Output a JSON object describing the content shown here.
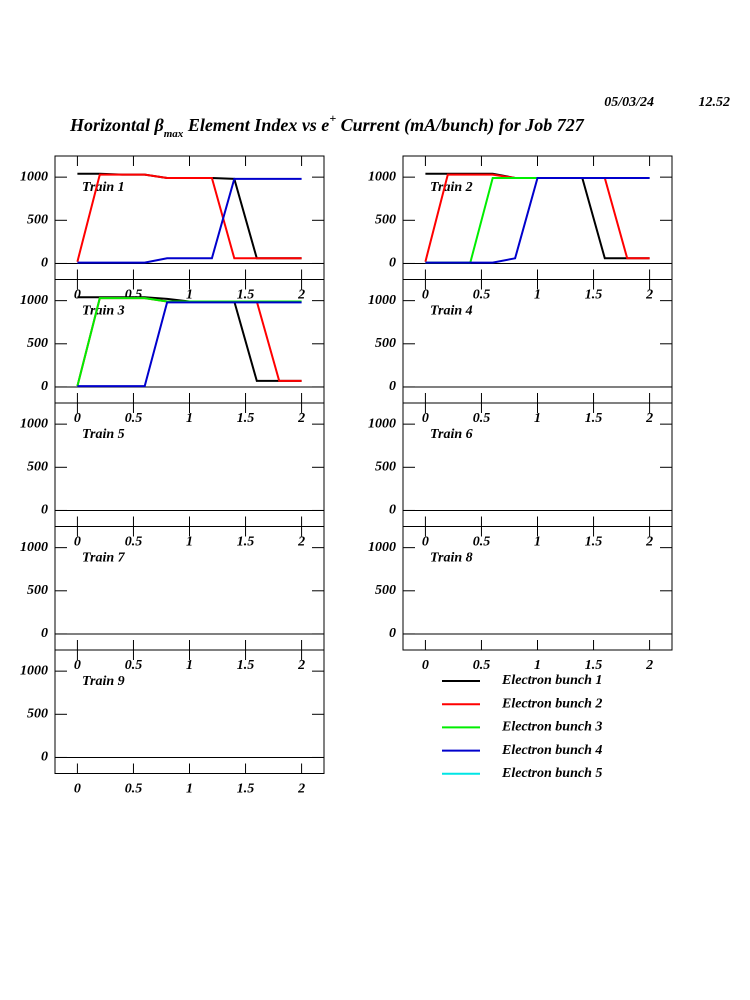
{
  "title_parts": [
    "Horizontal β",
    "max",
    " Element Index vs e",
    "+",
    " Current (mA/bunch) for Job 727"
  ],
  "date": "05/03/24",
  "time": "12.52",
  "legend": [
    {
      "name": "Electron bunch 1",
      "color": "#000000"
    },
    {
      "name": "Electron bunch 2",
      "color": "#ff0000"
    },
    {
      "name": "Electron bunch 3",
      "color": "#00ee00"
    },
    {
      "name": "Electron bunch 4",
      "color": "#0000cc"
    },
    {
      "name": "Electron bunch 5",
      "color": "#00e5e5"
    }
  ],
  "chart_data": [
    {
      "type": "line",
      "title": "Train 1",
      "x": [
        0,
        0.2,
        0.4,
        0.6,
        0.8,
        1,
        1.2,
        1.4,
        1.6,
        1.8,
        2
      ],
      "series": [
        {
          "color": "#000000",
          "values": [
            1040,
            1040,
            1030,
            1030,
            990,
            990,
            990,
            980,
            60,
            60,
            60
          ]
        },
        {
          "color": "#ff0000",
          "values": [
            20,
            1030,
            1030,
            1030,
            990,
            990,
            990,
            60,
            60,
            60,
            60
          ]
        },
        {
          "color": "#0000cc",
          "values": [
            10,
            10,
            10,
            10,
            60,
            60,
            60,
            980,
            980,
            980,
            980
          ]
        }
      ],
      "xlim": [
        -0.2,
        2.2
      ],
      "ylim": [
        -186,
        1245
      ],
      "xticks": [
        0,
        0.5,
        1,
        1.5,
        2
      ],
      "yticks": [
        0,
        500,
        1000
      ]
    },
    {
      "type": "line",
      "title": "Train 2",
      "x": [
        0,
        0.2,
        0.4,
        0.6,
        0.8,
        1,
        1.2,
        1.4,
        1.6,
        1.8,
        2
      ],
      "series": [
        {
          "color": "#000000",
          "values": [
            1040,
            1040,
            1040,
            1040,
            990,
            990,
            990,
            990,
            60,
            60,
            60
          ]
        },
        {
          "color": "#ff0000",
          "values": [
            20,
            1030,
            1030,
            1030,
            990,
            990,
            990,
            990,
            990,
            60,
            60
          ]
        },
        {
          "color": "#00ee00",
          "values": [
            10,
            10,
            10,
            990,
            990,
            990,
            990,
            990,
            990,
            990,
            990
          ]
        },
        {
          "color": "#0000cc",
          "values": [
            10,
            10,
            10,
            10,
            60,
            990,
            990,
            990,
            990,
            990,
            990
          ]
        }
      ],
      "xlim": [
        -0.2,
        2.2
      ],
      "ylim": [
        -186,
        1245
      ],
      "xticks": [
        0,
        0.5,
        1,
        1.5,
        2
      ],
      "yticks": [
        0,
        500,
        1000
      ]
    },
    {
      "type": "line",
      "title": "Train 3",
      "x": [
        0,
        0.2,
        0.4,
        0.6,
        0.8,
        1,
        1.2,
        1.4,
        1.6,
        1.8,
        2
      ],
      "series": [
        {
          "color": "#000000",
          "values": [
            1040,
            1040,
            1040,
            1040,
            1020,
            990,
            990,
            990,
            70,
            70,
            70
          ]
        },
        {
          "color": "#ff0000",
          "values": [
            10,
            1030,
            1030,
            1030,
            990,
            990,
            990,
            990,
            990,
            70,
            70
          ]
        },
        {
          "color": "#00ee00",
          "values": [
            10,
            1030,
            1030,
            1030,
            990,
            990,
            990,
            990,
            990,
            990,
            990
          ]
        },
        {
          "color": "#0000cc",
          "values": [
            10,
            10,
            10,
            10,
            980,
            980,
            980,
            980,
            980,
            980,
            980
          ]
        }
      ],
      "xlim": [
        -0.2,
        2.2
      ],
      "ylim": [
        -186,
        1245
      ],
      "xticks": [
        0,
        0.5,
        1,
        1.5,
        2
      ],
      "yticks": [
        0,
        500,
        1000
      ]
    },
    {
      "type": "line",
      "title": "Train 4",
      "series": [],
      "xlim": [
        -0.2,
        2.2
      ],
      "ylim": [
        -186,
        1245
      ],
      "xticks": [
        0,
        0.5,
        1,
        1.5,
        2
      ],
      "yticks": [
        0,
        500,
        1000
      ]
    },
    {
      "type": "line",
      "title": "Train 5",
      "series": [],
      "xlim": [
        -0.2,
        2.2
      ],
      "ylim": [
        -186,
        1245
      ],
      "xticks": [
        0,
        0.5,
        1,
        1.5,
        2
      ],
      "yticks": [
        0,
        500,
        1000
      ]
    },
    {
      "type": "line",
      "title": "Train 6",
      "series": [],
      "xlim": [
        -0.2,
        2.2
      ],
      "ylim": [
        -186,
        1245
      ],
      "xticks": [
        0,
        0.5,
        1,
        1.5,
        2
      ],
      "yticks": [
        0,
        500,
        1000
      ]
    },
    {
      "type": "line",
      "title": "Train 7",
      "series": [],
      "xlim": [
        -0.2,
        2.2
      ],
      "ylim": [
        -186,
        1245
      ],
      "xticks": [
        0,
        0.5,
        1,
        1.5,
        2
      ],
      "yticks": [
        0,
        500,
        1000
      ]
    },
    {
      "type": "line",
      "title": "Train 8",
      "series": [],
      "xlim": [
        -0.2,
        2.2
      ],
      "ylim": [
        -186,
        1245
      ],
      "xticks": [
        0,
        0.5,
        1,
        1.5,
        2
      ],
      "yticks": [
        0,
        500,
        1000
      ]
    },
    {
      "type": "line",
      "title": "Train 9",
      "series": [],
      "xlim": [
        -0.2,
        2.2
      ],
      "ylim": [
        -186,
        1245
      ],
      "xticks": [
        0,
        0.5,
        1,
        1.5,
        2
      ],
      "yticks": [
        0,
        500,
        1000
      ]
    }
  ]
}
